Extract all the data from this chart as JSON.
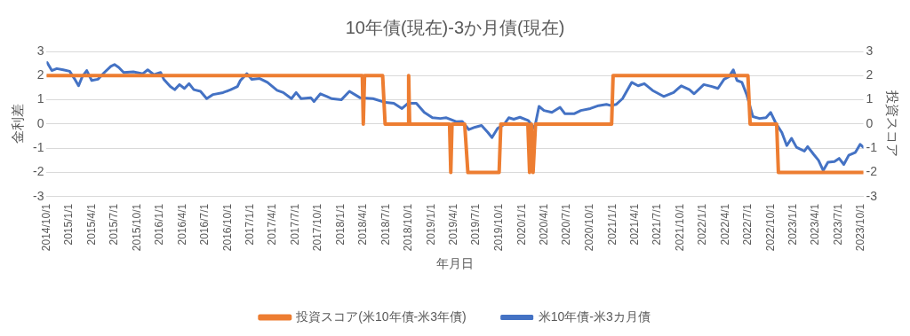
{
  "chart_data": {
    "type": "line",
    "title": "10年債(現在)-3か月債(現在)",
    "xlabel": "年月日",
    "ylabel": "金利差",
    "y2label": "投資スコア",
    "xlim": [
      "2014-10-01",
      "2023-10-10"
    ],
    "xticks": [
      {
        "value": "2014-10-01",
        "label": "2014/10/1"
      },
      {
        "value": "2015-01-01",
        "label": "2015/1/1"
      },
      {
        "value": "2015-04-01",
        "label": "2015/4/1"
      },
      {
        "value": "2015-07-01",
        "label": "2015/7/1"
      },
      {
        "value": "2015-10-01",
        "label": "2015/10/1"
      },
      {
        "value": "2016-01-01",
        "label": "2016/1/1"
      },
      {
        "value": "2016-04-01",
        "label": "2016/4/1"
      },
      {
        "value": "2016-07-01",
        "label": "2016/7/1"
      },
      {
        "value": "2016-10-01",
        "label": "2016/10/1"
      },
      {
        "value": "2017-01-01",
        "label": "2017/1/1"
      },
      {
        "value": "2017-04-01",
        "label": "2017/4/1"
      },
      {
        "value": "2017-07-01",
        "label": "2017/7/1"
      },
      {
        "value": "2017-10-01",
        "label": "2017/10/1"
      },
      {
        "value": "2018-01-01",
        "label": "2018/1/1"
      },
      {
        "value": "2018-04-01",
        "label": "2018/4/1"
      },
      {
        "value": "2018-07-01",
        "label": "2018/7/1"
      },
      {
        "value": "2018-10-01",
        "label": "2018/10/1"
      },
      {
        "value": "2019-01-01",
        "label": "2019/1/1"
      },
      {
        "value": "2019-04-01",
        "label": "2019/4/1"
      },
      {
        "value": "2019-07-01",
        "label": "2019/7/1"
      },
      {
        "value": "2019-10-01",
        "label": "2019/10/1"
      },
      {
        "value": "2020-01-01",
        "label": "2020/1/1"
      },
      {
        "value": "2020-04-01",
        "label": "2020/4/1"
      },
      {
        "value": "2020-07-01",
        "label": "2020/7/1"
      },
      {
        "value": "2020-10-01",
        "label": "2020/10/1"
      },
      {
        "value": "2021-01-01",
        "label": "2021/1/1"
      },
      {
        "value": "2021-04-01",
        "label": "2021/4/1"
      },
      {
        "value": "2021-07-01",
        "label": "2021/7/1"
      },
      {
        "value": "2021-10-01",
        "label": "2021/10/1"
      },
      {
        "value": "2022-01-01",
        "label": "2022/1/1"
      },
      {
        "value": "2022-04-01",
        "label": "2022/4/1"
      },
      {
        "value": "2022-07-01",
        "label": "2022/7/1"
      },
      {
        "value": "2022-10-01",
        "label": "2022/10/1"
      },
      {
        "value": "2023-01-01",
        "label": "2023/1/1"
      },
      {
        "value": "2023-04-01",
        "label": "2023/4/1"
      },
      {
        "value": "2023-07-01",
        "label": "2023/7/1"
      },
      {
        "value": "2023-10-01",
        "label": "2023/10/1"
      }
    ],
    "ylim": [
      -3,
      3
    ],
    "yticks": [
      -3,
      -2,
      -1,
      0,
      1,
      2,
      3
    ],
    "y2lim": [
      -3,
      3
    ],
    "y2ticks": [
      -3,
      -2,
      -1,
      0,
      1,
      2,
      3
    ],
    "grid": "y",
    "legend": "bottom",
    "marker": "none",
    "series": [
      {
        "name": "米10年債-米3カ月債",
        "color": "#4472c4",
        "x": [
          "2014-10-03",
          "2014-10-22",
          "2014-11-11",
          "2014-12-07",
          "2015-01-02",
          "2015-01-21",
          "2015-02-07",
          "2015-02-22",
          "2015-03-12",
          "2015-04-01",
          "2015-04-26",
          "2015-05-22",
          "2015-06-17",
          "2015-07-02",
          "2015-07-19",
          "2015-08-08",
          "2015-09-16",
          "2015-10-24",
          "2015-11-13",
          "2015-12-08",
          "2016-01-04",
          "2016-01-17",
          "2016-02-12",
          "2016-03-01",
          "2016-03-20",
          "2016-04-09",
          "2016-04-28",
          "2016-05-17",
          "2016-06-13",
          "2016-07-08",
          "2016-08-03",
          "2016-09-12",
          "2016-10-13",
          "2016-11-09",
          "2016-11-21",
          "2016-12-17",
          "2017-01-06",
          "2017-02-07",
          "2017-03-10",
          "2017-04-18",
          "2017-05-13",
          "2017-06-15",
          "2017-07-04",
          "2017-07-24",
          "2017-09-01",
          "2017-09-14",
          "2017-10-10",
          "2017-11-05",
          "2017-11-24",
          "2018-01-02",
          "2018-02-04",
          "2018-03-18",
          "2018-05-10",
          "2018-06-30",
          "2018-08-02",
          "2018-09-04",
          "2018-09-29",
          "2018-11-01",
          "2018-12-03",
          "2019-01-05",
          "2019-02-06",
          "2019-03-02",
          "2019-04-10",
          "2019-05-05",
          "2019-06-01",
          "2019-06-26",
          "2019-07-22",
          "2019-08-17",
          "2019-09-02",
          "2019-09-25",
          "2019-10-21",
          "2019-11-09",
          "2019-11-29",
          "2019-12-24",
          "2020-01-26",
          "2020-02-21",
          "2020-03-10",
          "2020-03-30",
          "2020-05-01",
          "2020-06-03",
          "2020-06-22",
          "2020-07-31",
          "2020-08-26",
          "2020-10-03",
          "2020-11-05",
          "2020-12-07",
          "2020-12-26",
          "2021-01-15",
          "2021-02-10",
          "2021-03-19",
          "2021-04-14",
          "2021-05-09",
          "2021-06-11",
          "2021-07-26",
          "2021-09-04",
          "2021-10-05",
          "2021-11-07",
          "2021-11-26",
          "2022-01-04",
          "2022-02-06",
          "2022-03-02",
          "2022-03-27",
          "2022-04-16",
          "2022-05-03",
          "2022-05-18",
          "2022-06-07",
          "2022-06-26",
          "2022-07-21",
          "2022-08-17",
          "2022-09-12",
          "2022-10-01",
          "2022-10-20",
          "2022-11-15",
          "2022-12-05",
          "2022-12-24",
          "2023-01-13",
          "2023-02-14",
          "2023-02-27",
          "2023-03-23",
          "2023-04-12",
          "2023-05-01",
          "2023-05-20",
          "2023-06-15",
          "2023-07-04",
          "2023-07-23",
          "2023-08-12",
          "2023-09-08",
          "2023-09-27",
          "2023-10-10"
        ],
        "values": [
          2.54,
          2.21,
          2.29,
          2.24,
          2.18,
          1.88,
          1.58,
          1.96,
          2.21,
          1.8,
          1.85,
          2.13,
          2.38,
          2.46,
          2.34,
          2.13,
          2.16,
          2.08,
          2.24,
          2.04,
          2.13,
          1.85,
          1.55,
          1.42,
          1.63,
          1.47,
          1.67,
          1.42,
          1.35,
          1.05,
          1.22,
          1.3,
          1.42,
          1.55,
          1.8,
          2.08,
          1.85,
          1.88,
          1.72,
          1.39,
          1.3,
          1.05,
          1.3,
          1.05,
          1.09,
          0.93,
          1.25,
          1.14,
          1.05,
          1.0,
          1.35,
          1.09,
          1.05,
          0.89,
          0.86,
          0.64,
          0.86,
          0.86,
          0.48,
          0.26,
          0.23,
          0.26,
          0.1,
          0.11,
          -0.23,
          -0.13,
          -0.06,
          -0.35,
          -0.56,
          -0.18,
          -0.02,
          0.26,
          0.2,
          0.28,
          0.15,
          -0.18,
          0.73,
          0.56,
          0.48,
          0.69,
          0.43,
          0.43,
          0.56,
          0.64,
          0.76,
          0.81,
          0.76,
          0.81,
          1.05,
          1.72,
          1.58,
          1.67,
          1.39,
          1.14,
          1.3,
          1.58,
          1.42,
          1.25,
          1.63,
          1.55,
          1.47,
          1.85,
          1.96,
          2.24,
          1.8,
          1.72,
          1.22,
          0.31,
          0.23,
          0.26,
          0.48,
          0.07,
          -0.35,
          -0.89,
          -0.59,
          -0.96,
          -1.12,
          -0.93,
          -1.25,
          -1.5,
          -1.92,
          -1.58,
          -1.55,
          -1.42,
          -1.67,
          -1.29,
          -1.17,
          -0.84,
          -0.96
        ]
      },
      {
        "name": "投資スコア(米10年債-米3年債)",
        "color": "#ed7d31",
        "axis": "y2",
        "x": [
          "2014-10-01",
          "2018-03-28",
          "2018-04-01",
          "2018-04-06",
          "2018-06-18",
          "2018-06-28",
          "2018-09-28",
          "2018-10-01",
          "2018-10-05",
          "2019-03-15",
          "2019-03-20",
          "2019-03-25",
          "2019-05-15",
          "2019-05-28",
          "2019-10-01",
          "2019-10-08",
          "2020-01-25",
          "2020-02-01",
          "2020-02-08",
          "2020-02-15",
          "2020-02-25",
          "2020-12-28",
          "2021-01-03",
          "2022-07-01",
          "2022-07-10",
          "2022-10-25",
          "2022-11-01",
          "2023-10-10"
        ],
        "values": [
          2,
          2,
          0,
          2,
          2,
          0,
          0,
          2,
          0,
          0,
          -2,
          0,
          0,
          -2,
          -2,
          0,
          0,
          -2,
          0,
          -2,
          0,
          0,
          2,
          2,
          0,
          0,
          -2,
          -2
        ]
      }
    ]
  }
}
